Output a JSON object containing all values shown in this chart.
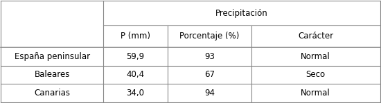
{
  "title_row": "Precipitación",
  "col_headers": [
    "P (mm)",
    "Porcentaje (%)",
    "Carácter"
  ],
  "row_headers": [
    "España peninsular",
    "Baleares",
    "Canarias"
  ],
  "data": [
    [
      "59,9",
      "93",
      "Normal"
    ],
    [
      "40,4",
      "67",
      "Seco"
    ],
    [
      "34,0",
      "94",
      "Normal"
    ]
  ],
  "bg_color": "#ffffff",
  "line_color": "#888888",
  "text_color": "#000000",
  "font_size": 8.5
}
